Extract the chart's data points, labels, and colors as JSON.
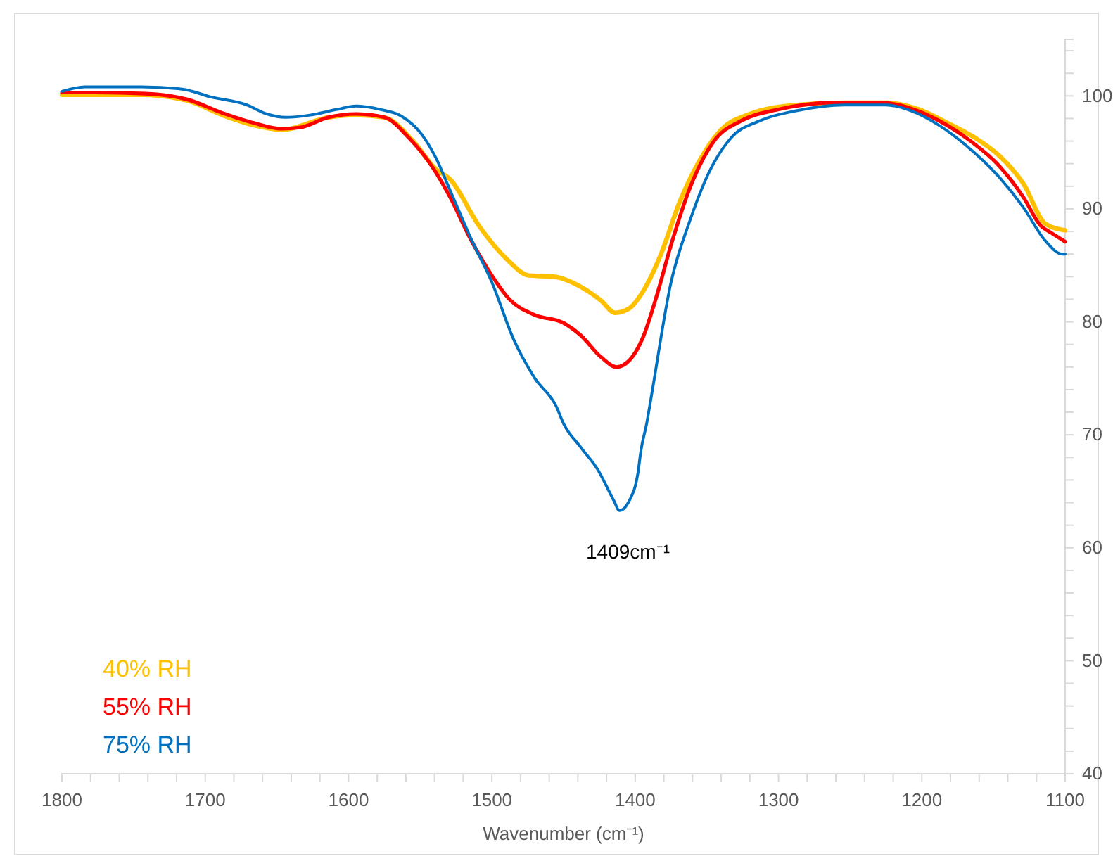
{
  "chart_data": {
    "type": "line",
    "xlabel": "Wavenumber (cm⁻¹)",
    "xlim": [
      1800,
      1100
    ],
    "ylim": [
      40,
      105
    ],
    "xticks": [
      1800,
      {
        "value": 1780,
        "label": null
      },
      {
        "value": 1760,
        "label": null
      },
      {
        "value": 1740,
        "label": null
      },
      {
        "value": 1720,
        "label": null
      },
      1700,
      {
        "value": 1680,
        "label": null
      },
      {
        "value": 1660,
        "label": null
      },
      {
        "value": 1640,
        "label": null
      },
      {
        "value": 1620,
        "label": null
      },
      1600,
      {
        "value": 1580,
        "label": null
      },
      {
        "value": 1560,
        "label": null
      },
      {
        "value": 1540,
        "label": null
      },
      {
        "value": 1520,
        "label": null
      },
      1500,
      {
        "value": 1480,
        "label": null
      },
      {
        "value": 1460,
        "label": null
      },
      {
        "value": 1440,
        "label": null
      },
      {
        "value": 1420,
        "label": null
      },
      1400,
      {
        "value": 1380,
        "label": null
      },
      {
        "value": 1360,
        "label": null
      },
      {
        "value": 1340,
        "label": null
      },
      {
        "value": 1320,
        "label": null
      },
      1300,
      {
        "value": 1280,
        "label": null
      },
      {
        "value": 1260,
        "label": null
      },
      {
        "value": 1240,
        "label": null
      },
      {
        "value": 1220,
        "label": null
      },
      1200,
      {
        "value": 1180,
        "label": null
      },
      {
        "value": 1160,
        "label": null
      },
      {
        "value": 1140,
        "label": null
      },
      {
        "value": 1120,
        "label": null
      },
      1100
    ],
    "yticks": [
      40,
      {
        "value": 42,
        "label": null
      },
      {
        "value": 44,
        "label": null
      },
      {
        "value": 46,
        "label": null
      },
      {
        "value": 48,
        "label": null
      },
      50,
      {
        "value": 52,
        "label": null
      },
      {
        "value": 54,
        "label": null
      },
      {
        "value": 56,
        "label": null
      },
      {
        "value": 58,
        "label": null
      },
      60,
      {
        "value": 62,
        "label": null
      },
      {
        "value": 64,
        "label": null
      },
      {
        "value": 66,
        "label": null
      },
      {
        "value": 68,
        "label": null
      },
      70,
      {
        "value": 72,
        "label": null
      },
      {
        "value": 74,
        "label": null
      },
      {
        "value": 76,
        "label": null
      },
      {
        "value": 78,
        "label": null
      },
      80,
      {
        "value": 82,
        "label": null
      },
      {
        "value": 84,
        "label": null
      },
      {
        "value": 86,
        "label": null
      },
      {
        "value": 88,
        "label": null
      },
      90,
      {
        "value": 92,
        "label": null
      },
      {
        "value": 94,
        "label": null
      },
      {
        "value": 96,
        "label": null
      },
      {
        "value": 98,
        "label": null
      },
      100,
      {
        "value": 102,
        "label": null
      },
      {
        "value": 104,
        "label": null
      }
    ],
    "grid": false,
    "legend": "bottom left",
    "line_style": "solid",
    "marker": "none",
    "annotations": [
      {
        "text": "1409cm⁻¹",
        "x": 1409,
        "y": 63.3
      }
    ],
    "series": [
      {
        "name": "40% RH",
        "color": "#ffc000",
        "x": [
          1800,
          1745,
          1713,
          1686,
          1666,
          1647,
          1614,
          1595,
          1575,
          1555,
          1539,
          1529,
          1509,
          1490,
          1474,
          1457,
          1438,
          1424,
          1414,
          1404,
          1395,
          1382,
          1369,
          1355,
          1340,
          1320,
          1287,
          1254,
          1225,
          1202,
          1182,
          1163,
          1146,
          1129,
          1114,
          1100
        ],
        "values": [
          100.1,
          100.1,
          99.6,
          98.2,
          97.4,
          97.0,
          98.1,
          98.3,
          98.1,
          96.0,
          93.5,
          92.6,
          88.5,
          85.6,
          84.1,
          84.0,
          83.1,
          81.9,
          80.8,
          81.2,
          82.6,
          86.0,
          90.6,
          94.3,
          97.0,
          98.4,
          99.2,
          99.4,
          99.4,
          98.8,
          97.6,
          96.3,
          94.7,
          92.2,
          88.7,
          88.1
        ]
      },
      {
        "name": "55% RH",
        "color": "#ff0000",
        "x": [
          1800,
          1777,
          1742,
          1713,
          1686,
          1666,
          1647,
          1634,
          1614,
          1595,
          1575,
          1558,
          1542,
          1529,
          1516,
          1503,
          1487,
          1470,
          1450,
          1438,
          1424,
          1413,
          1404,
          1395,
          1385,
          1375,
          1362,
          1345,
          1326,
          1300,
          1261,
          1228,
          1208,
          1188,
          1166,
          1146,
          1129,
          1117,
          1110,
          1100
        ],
        "values": [
          100.3,
          100.3,
          100.2,
          99.7,
          98.4,
          97.6,
          97.1,
          97.2,
          98.1,
          98.4,
          98.1,
          96.3,
          93.8,
          91.0,
          87.6,
          84.7,
          81.9,
          80.6,
          79.9,
          78.8,
          76.9,
          76.0,
          76.6,
          78.5,
          82.3,
          86.8,
          91.8,
          96.0,
          97.8,
          98.8,
          99.4,
          99.4,
          98.9,
          97.8,
          96.0,
          93.8,
          91.0,
          88.5,
          87.9,
          87.1
        ]
      },
      {
        "name": "75% RH",
        "color": "#0070c0",
        "x": [
          1800,
          1784,
          1745,
          1716,
          1696,
          1671,
          1657,
          1644,
          1627,
          1608,
          1595,
          1578,
          1563,
          1549,
          1539,
          1529,
          1514,
          1500,
          1485,
          1470,
          1455,
          1450,
          1438,
          1426,
          1415,
          1411,
          1404,
          1398,
          1396,
          1392,
          1389,
          1375,
          1362,
          1349,
          1333,
          1313,
          1287,
          1254,
          1225,
          1208,
          1188,
          1169,
          1146,
          1129,
          1114,
          1102,
          1100
        ],
        "values": [
          100.4,
          100.8,
          100.8,
          100.6,
          99.9,
          99.2,
          98.4,
          98.1,
          98.3,
          98.8,
          99.1,
          98.8,
          98.2,
          96.6,
          94.5,
          91.6,
          87.2,
          83.5,
          78.5,
          75.0,
          72.5,
          71.0,
          68.9,
          66.9,
          64.2,
          63.3,
          64.2,
          66.7,
          68.6,
          71.0,
          73.2,
          83.5,
          88.9,
          93.1,
          96.3,
          97.8,
          98.7,
          99.2,
          99.2,
          98.7,
          97.4,
          95.6,
          92.8,
          90.1,
          87.2,
          86.0,
          86.0
        ]
      }
    ]
  }
}
